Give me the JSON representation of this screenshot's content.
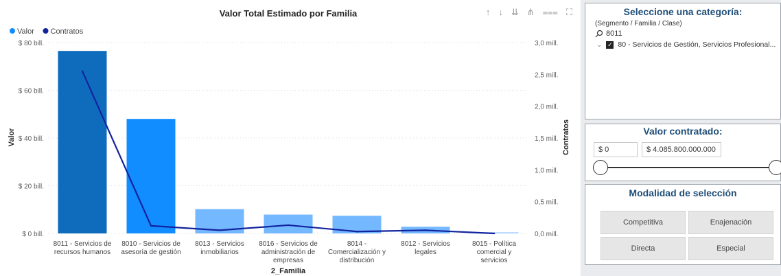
{
  "chart_data": {
    "type": "bar",
    "title": "Valor Total Estimado por Familia",
    "xlabel": "2_Familia",
    "ylabel": "Valor",
    "y2label": "Contratos",
    "legend": [
      {
        "name": "Valor",
        "color": "#118dff"
      },
      {
        "name": "Contratos",
        "color": "#12239e"
      }
    ],
    "legend_position": "top-left",
    "categories": [
      [
        "8011 - Servicios de",
        "recursos humanos"
      ],
      [
        "8010 - Servicios de",
        "asesoría de gestión"
      ],
      [
        "8013 - Servicios",
        "inmobiliarios"
      ],
      [
        "8016 - Servicios de",
        "administración de",
        "empresas"
      ],
      [
        "8014 -",
        "Comercialización y",
        "distribución"
      ],
      [
        "8012 - Servicios",
        "legales"
      ],
      [
        "8015 - Política",
        "comercial y",
        "servicios"
      ]
    ],
    "series": [
      {
        "name": "Valor",
        "axis": "left",
        "unit": "bill.",
        "values": [
          76.5,
          48.0,
          10.2,
          7.9,
          7.4,
          2.8,
          0.5
        ],
        "bar_colors": [
          "#0f6cbd",
          "#118dff",
          "#74b8ff",
          "#74b8ff",
          "#74b8ff",
          "#74b8ff",
          "#a9d3ff"
        ]
      },
      {
        "name": "Contratos",
        "axis": "right",
        "unit": "mill.",
        "values": [
          2.55,
          0.12,
          0.05,
          0.13,
          0.03,
          0.05,
          0.0
        ]
      }
    ],
    "y_ticks": [
      "$ 0 bill.",
      "$ 20 bill.",
      "$ 40 bill.",
      "$ 60 bill.",
      "$ 80 bill."
    ],
    "y_tick_values": [
      0,
      20,
      40,
      60,
      80
    ],
    "y2_ticks": [
      "0,0 mill.",
      "0,5 mill.",
      "1,0 mill.",
      "1,5 mill.",
      "2,0 mill.",
      "2,5 mill.",
      "3,0 mill."
    ],
    "y2_tick_values": [
      0,
      0.5,
      1.0,
      1.5,
      2.0,
      2.5,
      3.0
    ],
    "ylim": [
      0,
      80
    ],
    "y2lim": [
      0,
      3.0
    ],
    "grid": true
  },
  "toolbar": {
    "icons": [
      "arrow-up-icon",
      "arrow-down-icon",
      "double-arrow-down-icon",
      "expand-hierarchy-icon",
      "filter-icon",
      "focus-mode-icon"
    ],
    "glyphs": [
      "↑",
      "↓",
      "⇊",
      "⋔",
      "⩶",
      "⛶"
    ]
  },
  "slicer_category": {
    "title": "Seleccione una categoría:",
    "subtitle": "(Segmento / Familia / Clase)",
    "search_value": "8011",
    "tree_item": "80 - Servicios de Gestión, Servicios Profesional..."
  },
  "slicer_value": {
    "title": "Valor contratado:",
    "min": "$ 0",
    "max": "$ 4.085.800.000.000",
    "slider_min_fraction": 0,
    "slider_max_fraction": 1
  },
  "slicer_modalidad": {
    "title": "Modalidad de selección",
    "options": [
      "Competitiva",
      "Enajenación",
      "Directa",
      "Especial"
    ]
  }
}
